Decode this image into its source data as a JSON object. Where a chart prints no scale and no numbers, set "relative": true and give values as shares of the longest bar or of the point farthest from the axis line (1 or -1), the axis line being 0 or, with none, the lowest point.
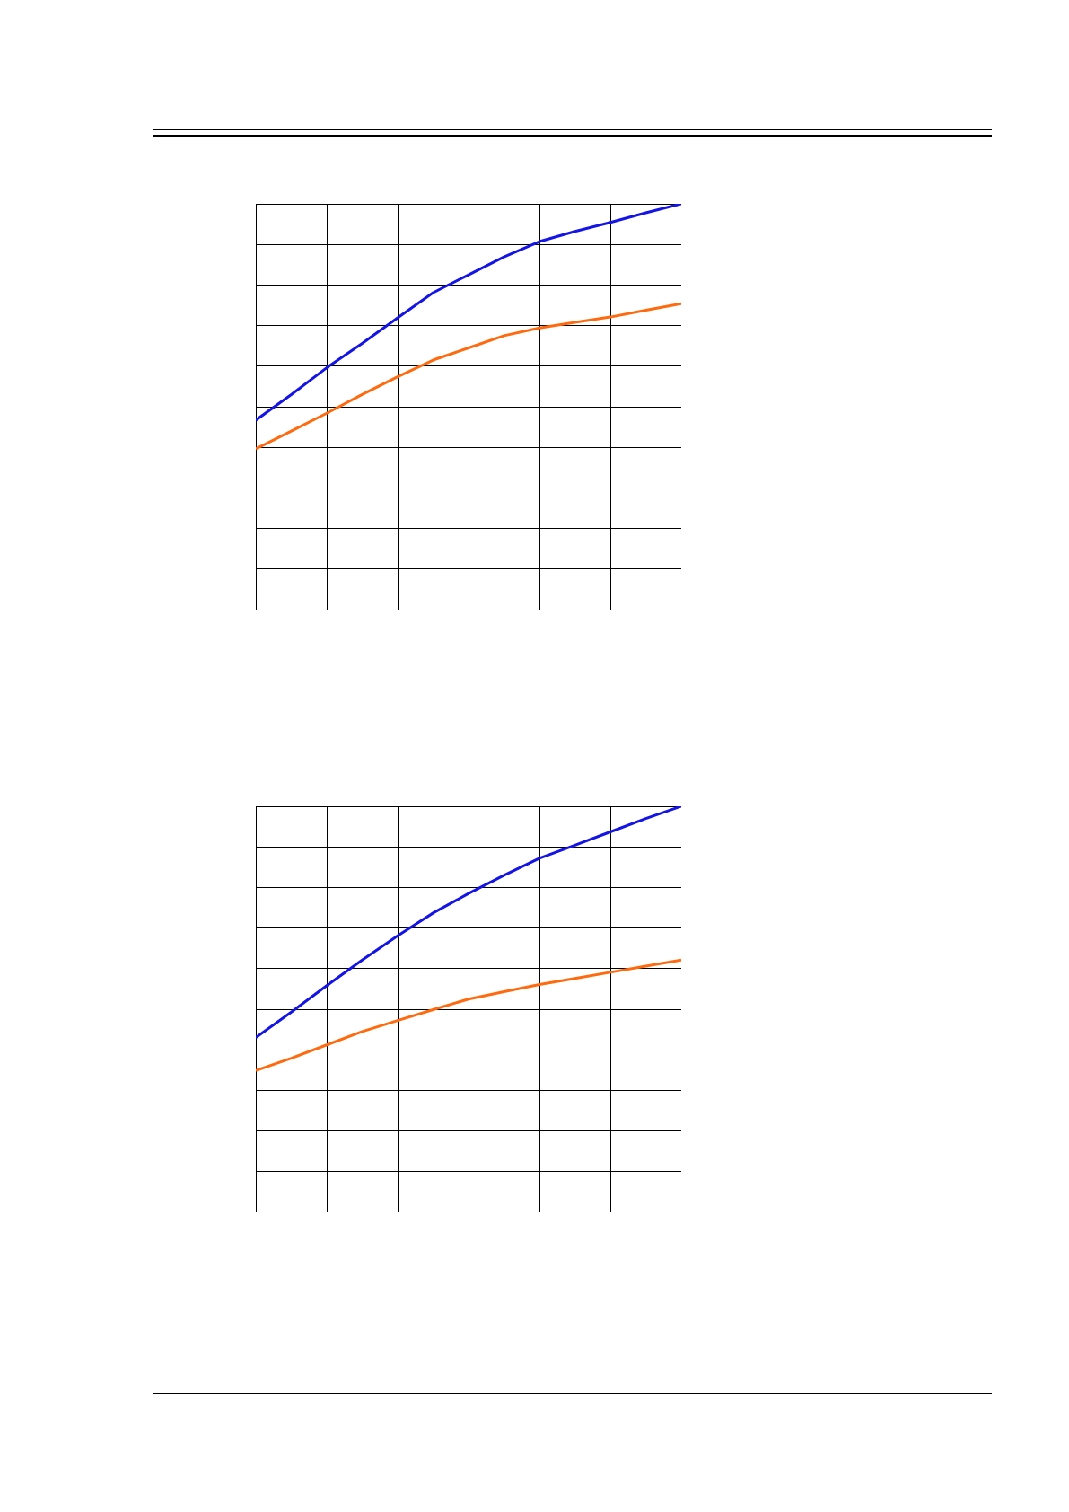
{
  "chart_data": [
    {
      "type": "line",
      "relative": true,
      "grid": true,
      "legend": false,
      "marker": "none",
      "line_style": "solid",
      "categories": [
        null,
        null,
        null,
        null,
        null,
        null,
        null,
        null,
        null,
        null,
        null,
        null,
        null
      ],
      "series": [
        {
          "color": "#1414e6",
          "values": [
            0.467,
            0.53,
            0.596,
            0.656,
            0.719,
            0.781,
            0.825,
            0.869,
            0.907,
            0.932,
            0.954,
            0.978,
            1
          ]
        },
        {
          "color": "#ff6a0f",
          "values": [
            0.396,
            0.44,
            0.484,
            0.53,
            0.574,
            0.615,
            0.645,
            0.675,
            0.694,
            0.708,
            0.721,
            0.738,
            0.754
          ]
        }
      ]
    },
    {
      "type": "line",
      "relative": true,
      "grid": true,
      "legend": false,
      "marker": "none",
      "line_style": "solid",
      "categories": [
        null,
        null,
        null,
        null,
        null,
        null,
        null,
        null,
        null,
        null,
        null,
        null,
        null
      ],
      "series": [
        {
          "color": "#1414e6",
          "values": [
            0.43,
            0.493,
            0.558,
            0.621,
            0.681,
            0.737,
            0.785,
            0.83,
            0.872,
            0.904,
            0.937,
            0.97,
            1
          ]
        },
        {
          "color": "#ff6a0f",
          "values": [
            0.349,
            0.379,
            0.412,
            0.445,
            0.472,
            0.499,
            0.525,
            0.543,
            0.561,
            0.576,
            0.591,
            0.606,
            0.621
          ]
        }
      ]
    }
  ]
}
